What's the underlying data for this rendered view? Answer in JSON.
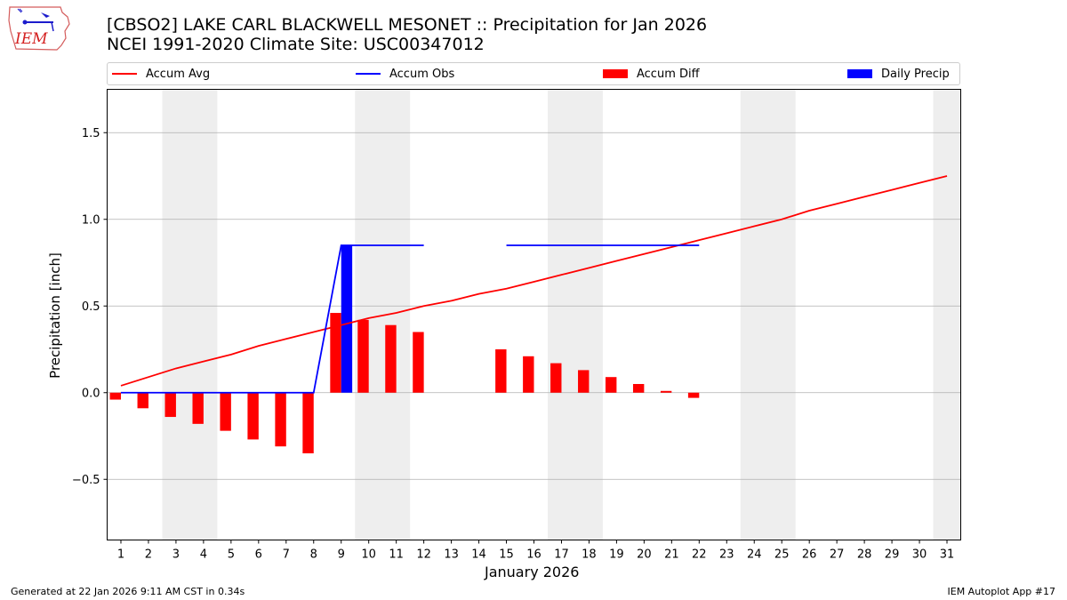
{
  "header": {
    "title_line1": "[CBSO2] LAKE CARL BLACKWELL MESONET :: Precipitation for Jan 2026",
    "title_line2": "NCEI 1991-2020 Climate Site: USC00347012"
  },
  "logo": {
    "text": "IEM"
  },
  "footer": {
    "generated": "Generated at 22 Jan 2026 9:11 AM CST in 0.34s",
    "app": "IEM Autoplot App #17"
  },
  "chart_data": {
    "type": "bar",
    "xlabel": "January 2026",
    "ylabel": "Precipitation [inch]",
    "xlim": [
      0.5,
      31.5
    ],
    "ylim": [
      -0.85,
      1.75
    ],
    "x_ticks": [
      1,
      2,
      3,
      4,
      5,
      6,
      7,
      8,
      9,
      10,
      11,
      12,
      13,
      14,
      15,
      16,
      17,
      18,
      19,
      20,
      21,
      22,
      23,
      24,
      25,
      26,
      27,
      28,
      29,
      30,
      31
    ],
    "y_ticks": [
      -0.5,
      0.0,
      0.5,
      1.0,
      1.5
    ],
    "y_tick_labels": [
      "−0.5",
      "0.0",
      "0.5",
      "1.0",
      "1.5"
    ],
    "grid": "horizontal",
    "weekend_shading": [
      [
        2.5,
        4.5
      ],
      [
        9.5,
        11.5
      ],
      [
        16.5,
        18.5
      ],
      [
        23.5,
        25.5
      ],
      [
        30.5,
        31.5
      ]
    ],
    "legend_position": "top",
    "series": [
      {
        "name": "Accum Avg",
        "kind": "line",
        "color": "#ff0000",
        "x": [
          1,
          2,
          3,
          4,
          5,
          6,
          7,
          8,
          9,
          10,
          11,
          12,
          13,
          14,
          15,
          16,
          17,
          18,
          19,
          20,
          21,
          22,
          23,
          24,
          25,
          26,
          27,
          28,
          29,
          30,
          31
        ],
        "values": [
          0.04,
          0.09,
          0.14,
          0.18,
          0.22,
          0.27,
          0.31,
          0.35,
          0.39,
          0.43,
          0.46,
          0.5,
          0.53,
          0.57,
          0.6,
          0.64,
          0.68,
          0.72,
          0.76,
          0.8,
          0.84,
          0.88,
          0.92,
          0.96,
          1.0,
          1.05,
          1.09,
          1.13,
          1.17,
          1.21,
          1.25
        ]
      },
      {
        "name": "Accum Obs",
        "kind": "line",
        "color": "#0000ff",
        "segments": [
          {
            "x": [
              1,
              2,
              3,
              4,
              5,
              6,
              7,
              8,
              9,
              10,
              11,
              12
            ],
            "values": [
              0,
              0,
              0,
              0,
              0,
              0,
              0,
              0,
              0.85,
              0.85,
              0.85,
              0.85
            ]
          },
          {
            "x": [
              15,
              16,
              17,
              18,
              19,
              20,
              21,
              22
            ],
            "values": [
              0.85,
              0.85,
              0.85,
              0.85,
              0.85,
              0.85,
              0.85,
              0.85
            ]
          }
        ]
      },
      {
        "name": "Accum Diff",
        "kind": "bar",
        "color": "#ff0000",
        "x": [
          1,
          2,
          3,
          4,
          5,
          6,
          7,
          8,
          9,
          10,
          11,
          12,
          15,
          16,
          17,
          18,
          19,
          20,
          21,
          22
        ],
        "values": [
          -0.04,
          -0.09,
          -0.14,
          -0.18,
          -0.22,
          -0.27,
          -0.31,
          -0.35,
          0.46,
          0.42,
          0.39,
          0.35,
          0.25,
          0.21,
          0.17,
          0.13,
          0.09,
          0.05,
          0.01,
          -0.03
        ]
      },
      {
        "name": "Daily Precip",
        "kind": "bar",
        "color": "#0000ff",
        "x": [
          9
        ],
        "values": [
          0.85
        ]
      }
    ]
  }
}
